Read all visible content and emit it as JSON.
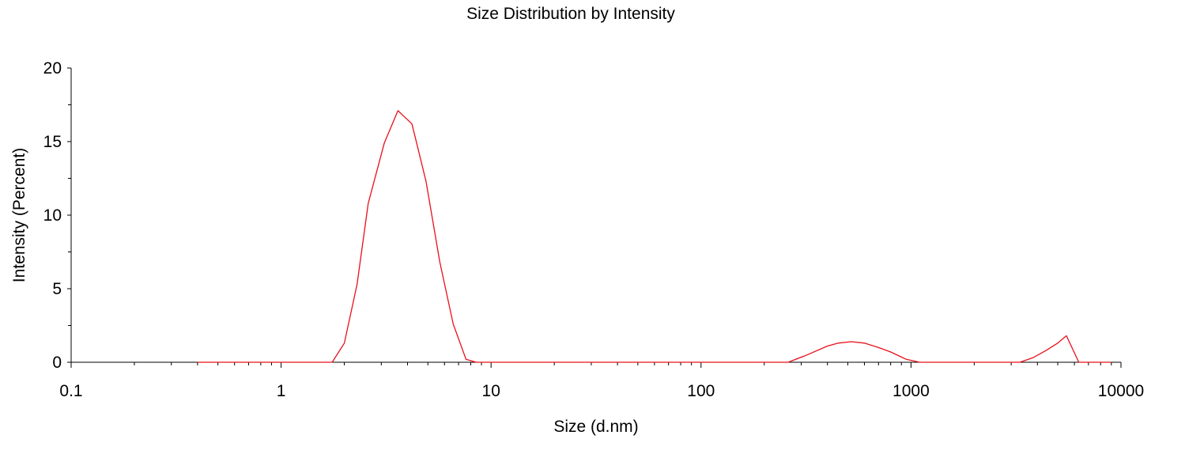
{
  "chart_data": {
    "type": "line",
    "title": "Size Distribution by Intensity",
    "xlabel": "Size (d.nm)",
    "ylabel": "Intensity (Percent)",
    "x_scale": "log",
    "xlim": [
      0.1,
      10000
    ],
    "ylim": [
      0,
      20
    ],
    "x_ticks": [
      0.1,
      1,
      10,
      100,
      1000,
      10000
    ],
    "x_tick_labels": [
      "0.1",
      "1",
      "10",
      "100",
      "1000",
      "10000"
    ],
    "y_ticks": [
      0,
      5,
      10,
      15,
      20
    ],
    "y_tick_labels": [
      "0",
      "5",
      "10",
      "15",
      "20"
    ],
    "grid": false,
    "legend": "none",
    "colors": {
      "series": "#e8101a",
      "axis": "#000000"
    },
    "series": [
      {
        "x": [
          0.4,
          0.6,
          1.0,
          1.5,
          1.75,
          2.0,
          2.3,
          2.6,
          3.1,
          3.6,
          4.2,
          4.9,
          5.7,
          6.6,
          7.6,
          8.5,
          10,
          20,
          50,
          100,
          200,
          260,
          320,
          400,
          450,
          520,
          600,
          700,
          800,
          950,
          1100,
          1300,
          2000,
          3000,
          3300,
          3800,
          4400,
          5000,
          5500,
          6300,
          7000,
          9000
        ],
        "y": [
          0,
          0,
          0,
          0,
          0,
          1.3,
          5.3,
          10.8,
          14.9,
          17.1,
          16.2,
          12.3,
          6.8,
          2.6,
          0.2,
          0,
          0,
          0,
          0,
          0,
          0,
          0,
          0.5,
          1.1,
          1.3,
          1.4,
          1.3,
          1.0,
          0.7,
          0.2,
          0,
          0,
          0,
          0,
          0,
          0.3,
          0.8,
          1.3,
          1.8,
          0,
          0,
          0
        ]
      }
    ]
  }
}
